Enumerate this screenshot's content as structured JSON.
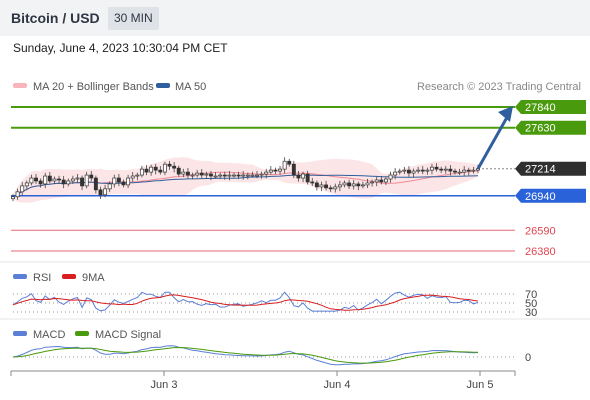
{
  "header": {
    "title": "Bitcoin / USD",
    "timeframe": "30 MIN"
  },
  "datetime": "Sunday, June 4, 2023 10:30:04 PM CET",
  "credit": "Research © 2023 Trading Central",
  "colors": {
    "support": "#4a9a0d",
    "resistance_line": "#4a9a0d",
    "pivot": "#2962d9",
    "lower_level": "#e0454f",
    "price_tag": "#2f2f2f",
    "arrow": "#2f5f9e",
    "bollinger": "#f7b5bb",
    "ma50": "#2f5f9e",
    "rsi": "#5b7fd6",
    "rsi_ma": "#d81e1e",
    "macd": "#5b7fd6",
    "macd_signal": "#4a9a0d"
  },
  "chart_data": [
    {
      "type": "candlestick",
      "legend": [
        "MA 20 + Bollinger Bands",
        "MA 50"
      ],
      "xlabels": [
        "Jun 3",
        "Jun 4",
        "Jun 5"
      ],
      "last_price": 27214,
      "levels": [
        {
          "value": 27840,
          "label": "27840",
          "kind": "resistance"
        },
        {
          "value": 27630,
          "label": "27630",
          "kind": "resistance"
        },
        {
          "value": 27214,
          "label": "27214",
          "kind": "price"
        },
        {
          "value": 26940,
          "label": "26940",
          "kind": "pivot"
        },
        {
          "value": 26590,
          "label": "26590",
          "kind": "support"
        },
        {
          "value": 26380,
          "label": "26380",
          "kind": "support"
        }
      ],
      "candles_close": [
        26930,
        26980,
        27040,
        27070,
        27120,
        27090,
        27060,
        27140,
        27090,
        27110,
        27100,
        27060,
        27090,
        27110,
        27120,
        27040,
        27150,
        27120,
        27000,
        26950,
        27010,
        27060,
        27120,
        27080,
        27050,
        27120,
        27140,
        27150,
        27210,
        27180,
        27230,
        27200,
        27180,
        27260,
        27240,
        27220,
        27160,
        27180,
        27150,
        27150,
        27170,
        27150,
        27160,
        27140,
        27140,
        27150,
        27140,
        27150,
        27150,
        27140,
        27150,
        27150,
        27150,
        27150,
        27160,
        27180,
        27200,
        27190,
        27210,
        27290,
        27260,
        27150,
        27120,
        27160,
        27080,
        27070,
        27030,
        27050,
        27020,
        27010,
        27030,
        27050,
        27070,
        27040,
        27060,
        27040,
        27050,
        27070,
        27080,
        27100,
        27080,
        27110,
        27150,
        27180,
        27190,
        27200,
        27170,
        27190,
        27200,
        27190,
        27200,
        27230,
        27210,
        27200,
        27210,
        27190,
        27180,
        27180,
        27200,
        27190,
        27200,
        27214
      ]
    },
    {
      "type": "line",
      "title": "RSI",
      "series": [
        "RSI",
        "9MA"
      ],
      "levels": [
        70,
        50,
        30
      ]
    },
    {
      "type": "line",
      "title": "MACD",
      "series": [
        "MACD",
        "MACD Signal"
      ],
      "levels": [
        0
      ]
    }
  ]
}
